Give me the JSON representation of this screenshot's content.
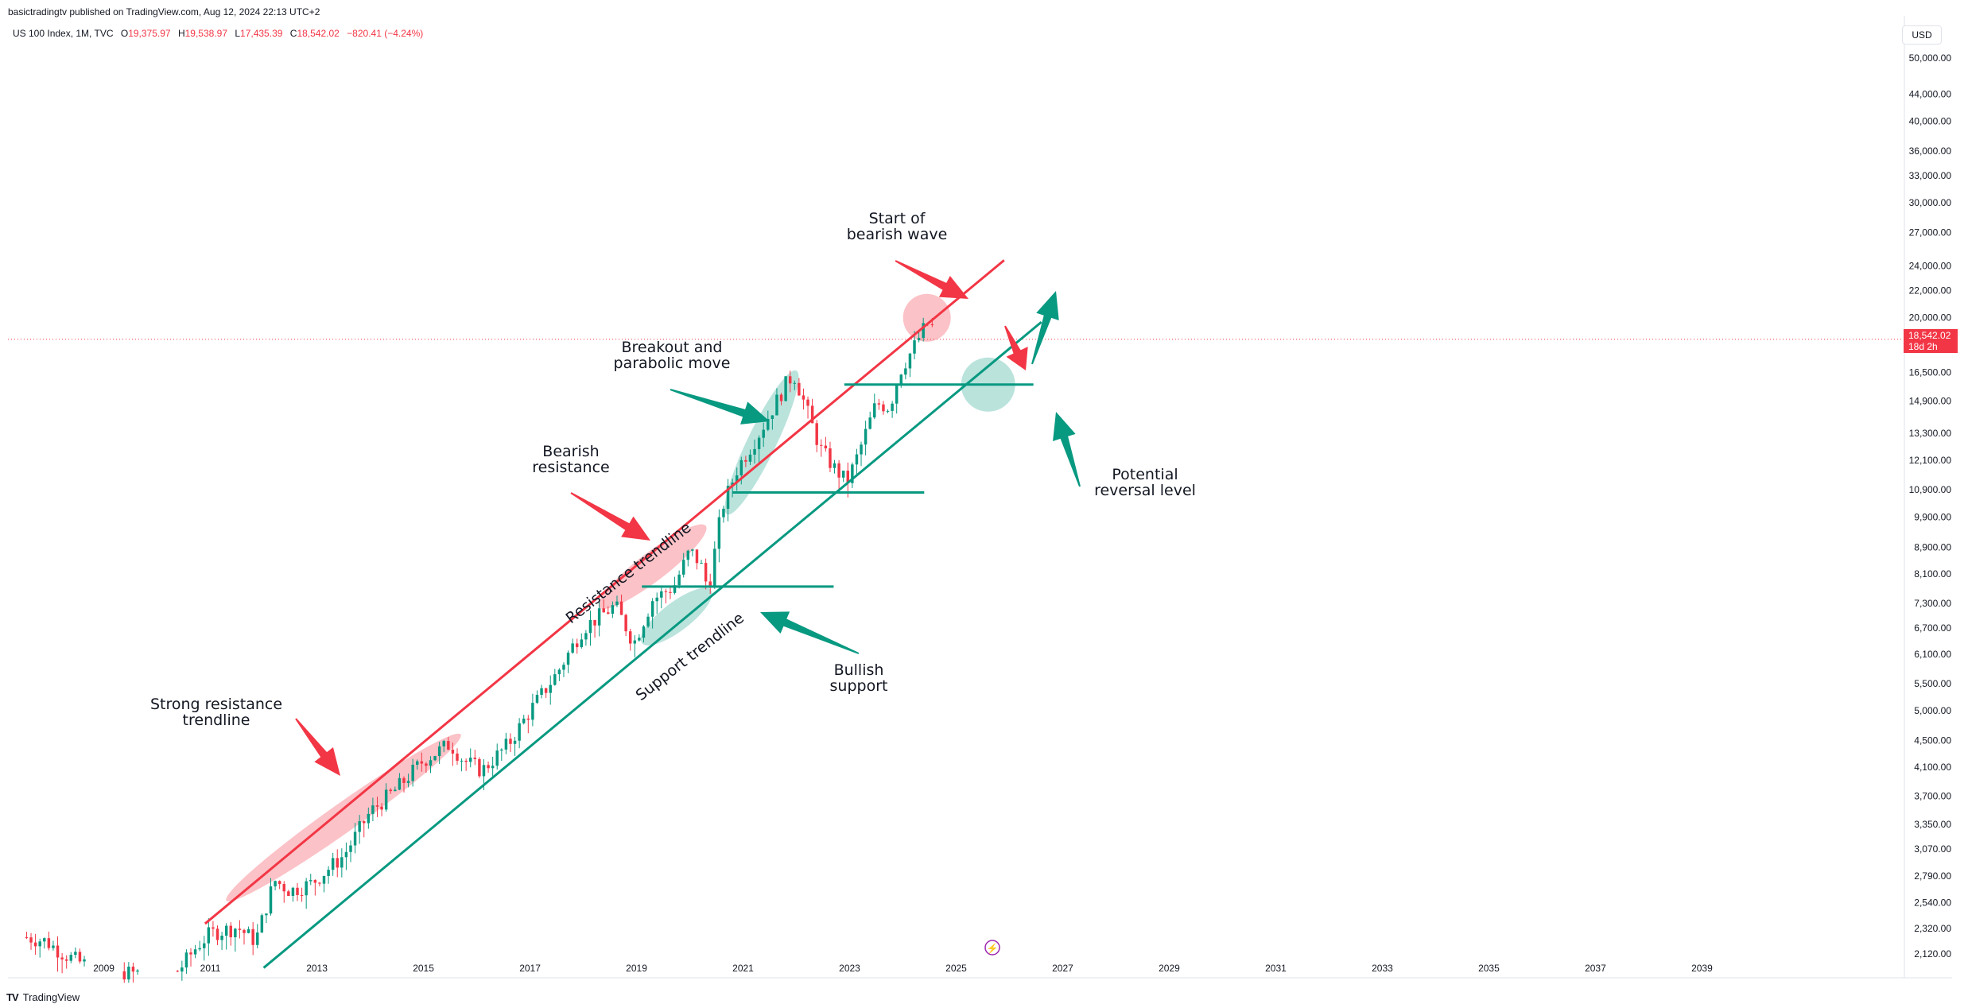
{
  "header": {
    "publisher_line": "basictradingtv published on TradingView.com, Aug 12, 2024 22:13 UTC+2",
    "symbol": "US 100 Index, 1M, TVC",
    "open_label": "O",
    "open": "19,375.97",
    "high_label": "H",
    "high": "19,538.97",
    "low_label": "L",
    "low": "17,435.39",
    "close_label": "C",
    "close": "18,542.02",
    "change": "−820.41 (−4.24%)"
  },
  "currency_button": "USD",
  "price_tag": {
    "price": "18,542.02",
    "countdown": "18d 2h"
  },
  "footer": {
    "brand": "TradingView",
    "logo_icon": "tradingview-logo-icon"
  },
  "colors": {
    "up": "#089981",
    "down": "#f23645",
    "resistance": "#f23645",
    "support": "#089981"
  },
  "chart_data": {
    "type": "candlestick",
    "title": "US 100 Index, 1M, TVC",
    "scale": "log",
    "ylim": [
      1950,
      58000
    ],
    "y_ticks": [
      50000,
      44000,
      40000,
      36000,
      33000,
      30000,
      27000,
      24000,
      22000,
      20000,
      16500,
      14900,
      13300,
      12100,
      10900,
      9900,
      8900,
      8100,
      7300,
      6700,
      6100,
      5500,
      5000,
      4500,
      4100,
      3700,
      3350,
      3070,
      2790,
      2540,
      2320,
      2120
    ],
    "x_ticks": [
      "2009",
      "2011",
      "2013",
      "2015",
      "2017",
      "2019",
      "2021",
      "2023",
      "2025",
      "2027",
      "2029",
      "2031",
      "2033",
      "2035",
      "2037",
      "2039"
    ],
    "x_range": [
      2007.2,
      2042.8
    ],
    "last_price": 18542.02,
    "anchors": [
      [
        2007.55,
        2250
      ],
      [
        2007.9,
        2220
      ],
      [
        2008.25,
        2120
      ],
      [
        2008.6,
        2050
      ],
      [
        2009.5,
        1980
      ],
      [
        2010.4,
        2000
      ],
      [
        2010.75,
        2180
      ],
      [
        2011.0,
        2280
      ],
      [
        2011.5,
        2330
      ],
      [
        2011.85,
        2220
      ],
      [
        2012.2,
        2750
      ],
      [
        2012.5,
        2650
      ],
      [
        2012.9,
        2720
      ],
      [
        2013.5,
        3000
      ],
      [
        2014.0,
        3500
      ],
      [
        2014.5,
        3800
      ],
      [
        2015.0,
        4200
      ],
      [
        2015.5,
        4450
      ],
      [
        2015.75,
        4200
      ],
      [
        2016.1,
        4050
      ],
      [
        2016.6,
        4450
      ],
      [
        2017.0,
        5000
      ],
      [
        2017.5,
        5700
      ],
      [
        2018.0,
        6700
      ],
      [
        2018.6,
        7250
      ],
      [
        2018.95,
        6350
      ],
      [
        2019.3,
        7400
      ],
      [
        2019.7,
        7750
      ],
      [
        2020.0,
        8800
      ],
      [
        2020.2,
        8400
      ],
      [
        2020.35,
        7650
      ],
      [
        2020.6,
        10200
      ],
      [
        2020.9,
        11800
      ],
      [
        2021.3,
        13300
      ],
      [
        2021.8,
        15800
      ],
      [
        2021.95,
        16400
      ],
      [
        2022.1,
        15200
      ],
      [
        2022.45,
        12600
      ],
      [
        2022.7,
        11800
      ],
      [
        2022.95,
        11200
      ],
      [
        2023.15,
        12300
      ],
      [
        2023.5,
        14800
      ],
      [
        2023.75,
        14600
      ],
      [
        2023.95,
        16600
      ],
      [
        2024.2,
        18000
      ],
      [
        2024.45,
        19600
      ],
      [
        2024.55,
        19380
      ],
      [
        2024.62,
        18542
      ]
    ],
    "trendlines": {
      "resistance": [
        [
          2010.9,
          2360
        ],
        [
          2025.9,
          24500
        ]
      ],
      "support": [
        [
          2012.0,
          2020
        ],
        [
          2026.6,
          19700
        ]
      ]
    },
    "horizontal_levels": [
      {
        "value": 7750,
        "x": [
          2019.1,
          2022.7
        ]
      },
      {
        "value": 10800,
        "x": [
          2020.8,
          2024.4
        ]
      },
      {
        "value": 15800,
        "x": [
          2022.9,
          2026.45
        ]
      }
    ],
    "highlights": [
      {
        "kind": "band",
        "color": "down",
        "from": [
          2011.3,
          2560
        ],
        "to": [
          2015.7,
          4600
        ]
      },
      {
        "kind": "band",
        "color": "down",
        "from": [
          2018.3,
          7200
        ],
        "to": [
          2020.3,
          9600
        ]
      },
      {
        "kind": "band",
        "color": "up",
        "from": [
          2020.7,
          10000
        ],
        "to": [
          2022.0,
          16600
        ]
      },
      {
        "kind": "band",
        "color": "up",
        "from": [
          2019.1,
          6350
        ],
        "to": [
          2020.4,
          7650
        ]
      },
      {
        "kind": "circle",
        "color": "down",
        "center": [
          2024.45,
          20000
        ]
      },
      {
        "kind": "circle",
        "color": "up",
        "center": [
          2025.6,
          15800
        ]
      }
    ],
    "annotations": [
      {
        "lines": [
          "Strong resistance",
          "trendline"
        ]
      },
      {
        "lines": [
          "Bearish",
          "resistance"
        ]
      },
      {
        "lines": [
          "Breakout and",
          "parabolic move"
        ]
      },
      {
        "lines": [
          "Start of",
          "bearish wave"
        ]
      },
      {
        "lines": [
          "Bullish",
          "support"
        ]
      },
      {
        "lines": [
          "Potential",
          "reversal level"
        ]
      },
      {
        "rotated": "Resistance trendline"
      },
      {
        "rotated": "Support trendline"
      }
    ]
  }
}
